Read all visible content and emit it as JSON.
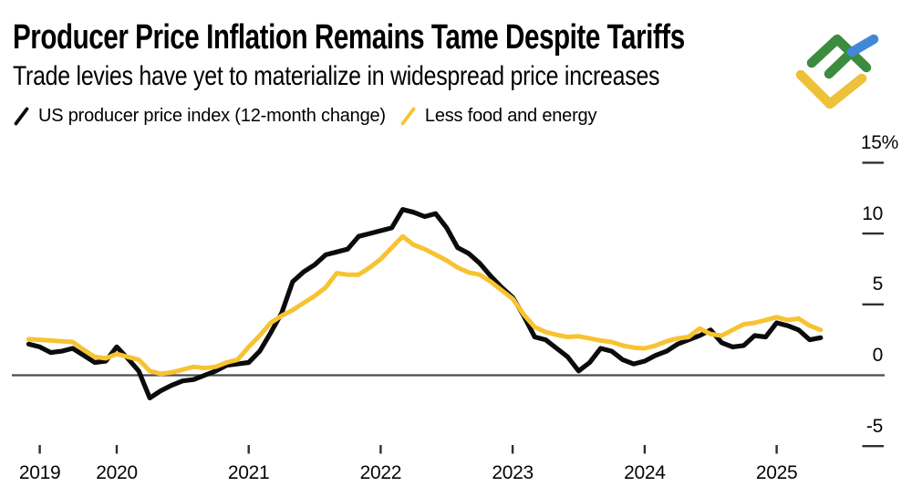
{
  "header": {
    "title": "Producer Price Inflation Remains Tame Despite Tariffs",
    "subtitle": "Trade levies have yet to materialize in widespread price increases"
  },
  "legend": {
    "items": [
      {
        "key": "ppi",
        "label": "US producer price index (12-month change)",
        "color": "#0b0b0b"
      },
      {
        "key": "core",
        "label": "Less food and energy",
        "color": "#f7c331"
      }
    ]
  },
  "branding": {
    "logo_name": "litefinance-mark",
    "colors": {
      "green": "#3b8c3f",
      "blue": "#4189d8",
      "yellow": "#edc13a"
    }
  },
  "chart_data": {
    "type": "line",
    "title": "Producer Price Inflation Remains Tame Despite Tariffs",
    "subtitle": "Trade levies have yet to materialize in widespread price increases",
    "frequency": "monthly",
    "x_start": "May 2019",
    "x_end": "May 2025",
    "x_tick_labels": [
      "2019",
      "2020",
      "2021",
      "2022",
      "2023",
      "2024",
      "2025"
    ],
    "x_tick_month_index": [
      1,
      8,
      20,
      32,
      44,
      56,
      68
    ],
    "y_tick_labels": [
      "15%",
      "10",
      "5",
      "0",
      "-5"
    ],
    "y_tick_values": [
      15,
      10,
      5,
      0,
      -5
    ],
    "ylim": [
      -7,
      16.5
    ],
    "grid": "zero-line-only",
    "legend_position": "top-left",
    "colors": {
      "axis_line": "#4a4c4f",
      "tick": "#2e2f32",
      "label_text": "#050505"
    },
    "series": [
      {
        "key": "ppi",
        "name": "US producer price index (12-month change)",
        "color": "#0b0b0b",
        "values": [
          2.2,
          2.0,
          1.6,
          1.7,
          1.9,
          1.4,
          0.9,
          1.0,
          2.0,
          1.2,
          0.3,
          -1.6,
          -1.1,
          -0.7,
          -0.4,
          -0.3,
          0.0,
          0.3,
          0.7,
          0.8,
          0.9,
          1.7,
          3.0,
          4.4,
          6.6,
          7.3,
          7.8,
          8.5,
          8.7,
          8.9,
          9.8,
          10.0,
          10.2,
          10.4,
          11.7,
          11.5,
          11.2,
          11.4,
          10.4,
          9.0,
          8.6,
          7.9,
          7.0,
          6.2,
          5.5,
          4.2,
          2.7,
          2.5,
          1.9,
          1.3,
          0.3,
          0.9,
          1.9,
          1.7,
          1.1,
          0.8,
          1.0,
          1.4,
          1.7,
          2.2,
          2.5,
          2.8,
          3.2,
          2.3,
          2.0,
          2.1,
          2.8,
          2.7,
          3.7,
          3.5,
          3.2,
          2.5,
          2.65
        ]
      },
      {
        "key": "core",
        "name": "Less food and energy",
        "color": "#f7c331",
        "values": [
          2.55,
          2.5,
          2.45,
          2.4,
          2.35,
          1.8,
          1.3,
          1.2,
          1.5,
          1.3,
          1.1,
          0.3,
          0.1,
          0.2,
          0.4,
          0.6,
          0.5,
          0.6,
          0.9,
          1.1,
          2.0,
          2.8,
          3.7,
          4.2,
          4.6,
          5.1,
          5.6,
          6.2,
          7.2,
          7.1,
          7.1,
          7.6,
          8.2,
          9.0,
          9.8,
          9.2,
          8.9,
          8.5,
          8.1,
          7.6,
          7.25,
          7.1,
          6.6,
          6.0,
          5.4,
          4.3,
          3.4,
          3.05,
          2.85,
          2.7,
          2.75,
          2.6,
          2.45,
          2.35,
          2.1,
          1.95,
          1.9,
          2.1,
          2.4,
          2.6,
          2.7,
          3.3,
          2.9,
          2.8,
          3.2,
          3.6,
          3.7,
          3.9,
          4.1,
          3.9,
          4.0,
          3.5,
          3.2
        ]
      }
    ]
  }
}
